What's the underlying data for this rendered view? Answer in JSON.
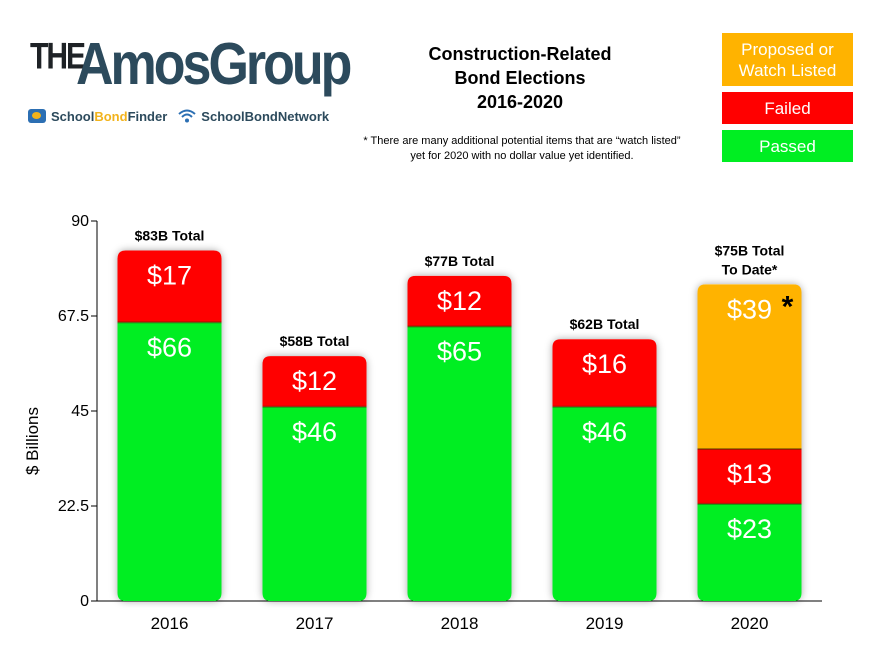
{
  "logo": {
    "the": "THE",
    "main": "AmosGroup",
    "sub_left_a": "School",
    "sub_left_b": "Bond",
    "sub_left_c": "Finder",
    "sub_right": "SchoolBondNetwork"
  },
  "title_lines": [
    "Construction-Related",
    "Bond Elections",
    "2016-2020"
  ],
  "footnote": "* There are many additional potential items that are “watch listed” yet for 2020 with no dollar value yet identified.",
  "colors": {
    "passed": "#00ee22",
    "failed": "#ff0000",
    "proposed": "#ffb300"
  },
  "chart_data": {
    "type": "bar",
    "stacked": true,
    "categories": [
      "2016",
      "2017",
      "2018",
      "2019",
      "2020"
    ],
    "series": [
      {
        "name": "Passed",
        "values": [
          66,
          46,
          65,
          46,
          23
        ],
        "labels": [
          "$66",
          "$46",
          "$65",
          "$46",
          "$23"
        ]
      },
      {
        "name": "Failed",
        "values": [
          17,
          12,
          12,
          16,
          13
        ],
        "labels": [
          "$17",
          "$12",
          "$12",
          "$16",
          "$13"
        ]
      },
      {
        "name": "Proposed or Watch Listed",
        "values": [
          0,
          0,
          0,
          0,
          39
        ],
        "labels": [
          "",
          "",
          "",
          "",
          "$39"
        ]
      }
    ],
    "totals": [
      [
        "$83B Total"
      ],
      [
        "$58B Total"
      ],
      [
        "$77B Total"
      ],
      [
        "$62B Total"
      ],
      [
        "$75B Total",
        "To Date*"
      ]
    ],
    "asterisk": "*",
    "ylabel": "$ Billions",
    "ylim": [
      0,
      90
    ],
    "yticks": [
      "0",
      "22.5",
      "45",
      "67.5",
      "90"
    ],
    "legend": {
      "position": "top-right",
      "items": [
        {
          "label_lines": [
            "Proposed or",
            "Watch Listed"
          ],
          "color": "#ffb300"
        },
        {
          "label_lines": [
            "Failed"
          ],
          "color": "#ff0000"
        },
        {
          "label_lines": [
            "Passed"
          ],
          "color": "#00ee22"
        }
      ]
    },
    "grid": false
  }
}
